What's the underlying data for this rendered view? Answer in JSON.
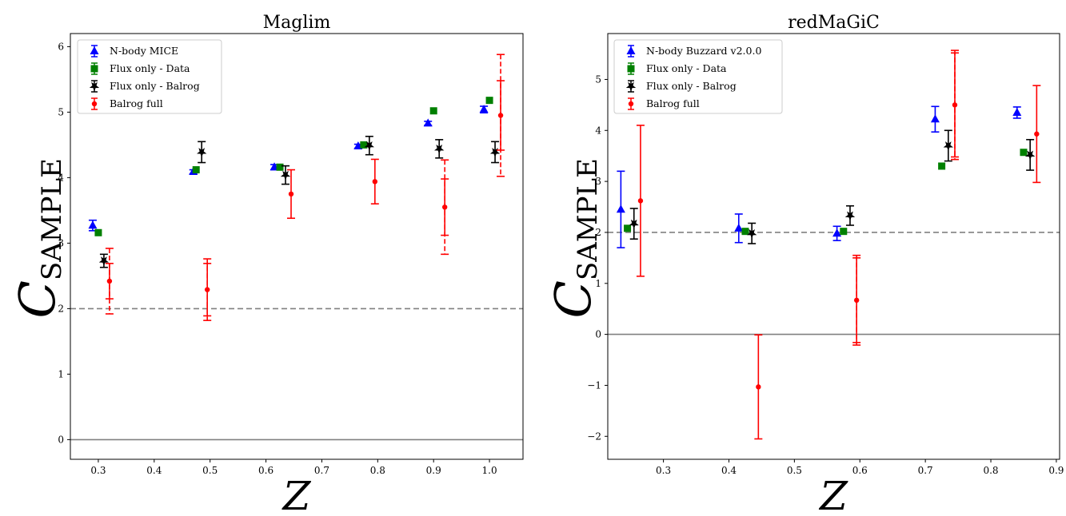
{
  "chart_data": [
    {
      "type": "scatter",
      "title": "Maglim",
      "xlabel": "Z",
      "ylabel_main": "C",
      "ylabel_sub": "SAMPLE",
      "xlim": [
        0.25,
        1.06
      ],
      "ylim": [
        -0.3,
        6.2
      ],
      "xticks": [
        0.3,
        0.4,
        0.5,
        0.6,
        0.7,
        0.8,
        0.9,
        1.0
      ],
      "xtick_labels": [
        "0.3",
        "0.4",
        "0.5",
        "0.6",
        "0.7",
        "0.8",
        "0.9",
        "1.0"
      ],
      "yticks": [
        0,
        1,
        2,
        3,
        4,
        5,
        6
      ],
      "ytick_labels": [
        "0",
        "1",
        "2",
        "3",
        "4",
        "5",
        "6"
      ],
      "reference_lines": [
        {
          "y": 2,
          "style": "dashed"
        },
        {
          "y": 0,
          "style": "solid"
        }
      ],
      "legend_position": "top-left",
      "series": [
        {
          "name": "N-body MICE",
          "color": "#0000ff",
          "marker": "triangle",
          "points": [
            {
              "x": 0.29,
              "y": 3.27,
              "err": 0.08
            },
            {
              "x": 0.47,
              "y": 4.09,
              "err": 0.03
            },
            {
              "x": 0.615,
              "y": 4.16,
              "err": 0.04
            },
            {
              "x": 0.765,
              "y": 4.48,
              "err": 0.03
            },
            {
              "x": 0.89,
              "y": 4.83,
              "err": 0.03
            },
            {
              "x": 0.99,
              "y": 5.04,
              "err": 0.05
            }
          ]
        },
        {
          "name": "Flux only - Data",
          "color": "#008000",
          "marker": "square",
          "points": [
            {
              "x": 0.3,
              "y": 3.16
            },
            {
              "x": 0.475,
              "y": 4.12
            },
            {
              "x": 0.625,
              "y": 4.16
            },
            {
              "x": 0.775,
              "y": 4.5
            },
            {
              "x": 0.9,
              "y": 5.02
            },
            {
              "x": 1.0,
              "y": 5.18
            }
          ]
        },
        {
          "name": "Flux only - Balrog",
          "color": "#000000",
          "marker": "star",
          "points": [
            {
              "x": 0.31,
              "y": 2.73,
              "err": 0.1
            },
            {
              "x": 0.485,
              "y": 4.39,
              "err": 0.16
            },
            {
              "x": 0.635,
              "y": 4.04,
              "err": 0.14
            },
            {
              "x": 0.785,
              "y": 4.49,
              "err": 0.14
            },
            {
              "x": 0.91,
              "y": 4.44,
              "err": 0.14
            },
            {
              "x": 1.01,
              "y": 4.39,
              "err": 0.16
            }
          ]
        },
        {
          "name": "Balrog full",
          "color": "#ff0000",
          "marker": "circle",
          "points": [
            {
              "x": 0.32,
              "y": 2.42,
              "err": 0.5,
              "err2": 0.27
            },
            {
              "x": 0.495,
              "y": 2.29,
              "err": 0.47,
              "err2": 0.4
            },
            {
              "x": 0.645,
              "y": 3.75,
              "err": 0.37
            },
            {
              "x": 0.795,
              "y": 3.94,
              "err": 0.34
            },
            {
              "x": 0.92,
              "y": 3.55,
              "err": 0.72,
              "err2": 0.43
            },
            {
              "x": 1.02,
              "y": 4.95,
              "err": 0.93,
              "err2": 0.53
            }
          ]
        }
      ]
    },
    {
      "type": "scatter",
      "title": "redMaGiC",
      "xlabel": "Z",
      "ylabel_main": "C",
      "ylabel_sub": "SAMPLE",
      "xlim": [
        0.215,
        0.905
      ],
      "ylim": [
        -2.45,
        5.9
      ],
      "xticks": [
        0.3,
        0.4,
        0.5,
        0.6,
        0.7,
        0.8,
        0.9
      ],
      "xtick_labels": [
        "0.3",
        "0.4",
        "0.5",
        "0.6",
        "0.7",
        "0.8",
        "0.9"
      ],
      "yticks": [
        -2,
        -1,
        0,
        1,
        2,
        3,
        4,
        5
      ],
      "ytick_labels": [
        "−2",
        "−1",
        "0",
        "1",
        "2",
        "3",
        "4",
        "5"
      ],
      "reference_lines": [
        {
          "y": 2,
          "style": "dashed"
        },
        {
          "y": 0,
          "style": "solid"
        }
      ],
      "legend_position": "top-left",
      "series": [
        {
          "name": "N-body Buzzard v2.0.0",
          "color": "#0000ff",
          "marker": "triangle",
          "points": [
            {
              "x": 0.235,
              "y": 2.45,
              "err": 0.75
            },
            {
              "x": 0.415,
              "y": 2.08,
              "err": 0.28
            },
            {
              "x": 0.565,
              "y": 1.98,
              "err": 0.14
            },
            {
              "x": 0.715,
              "y": 4.22,
              "err": 0.25
            },
            {
              "x": 0.84,
              "y": 4.35,
              "err": 0.11
            }
          ]
        },
        {
          "name": "Flux only - Data",
          "color": "#008000",
          "marker": "square",
          "points": [
            {
              "x": 0.245,
              "y": 2.08
            },
            {
              "x": 0.425,
              "y": 2.02
            },
            {
              "x": 0.575,
              "y": 2.02
            },
            {
              "x": 0.725,
              "y": 3.3
            },
            {
              "x": 0.85,
              "y": 3.57
            }
          ]
        },
        {
          "name": "Flux only - Balrog",
          "color": "#000000",
          "marker": "star",
          "points": [
            {
              "x": 0.255,
              "y": 2.17,
              "err": 0.3
            },
            {
              "x": 0.435,
              "y": 1.98,
              "err": 0.2
            },
            {
              "x": 0.585,
              "y": 2.33,
              "err": 0.19
            },
            {
              "x": 0.735,
              "y": 3.7,
              "err": 0.3
            },
            {
              "x": 0.86,
              "y": 3.52,
              "err": 0.3
            }
          ]
        },
        {
          "name": "Balrog full",
          "color": "#ff0000",
          "marker": "circle",
          "points": [
            {
              "x": 0.265,
              "y": 2.62,
              "err": 1.48
            },
            {
              "x": 0.445,
              "y": -1.03,
              "err": 1.02
            },
            {
              "x": 0.595,
              "y": 0.67,
              "err": 0.88,
              "err2": 0.83
            },
            {
              "x": 0.745,
              "y": 4.5,
              "err": 1.07,
              "err2": 1.02
            },
            {
              "x": 0.87,
              "y": 3.93,
              "err": 0.95
            }
          ]
        }
      ]
    }
  ]
}
